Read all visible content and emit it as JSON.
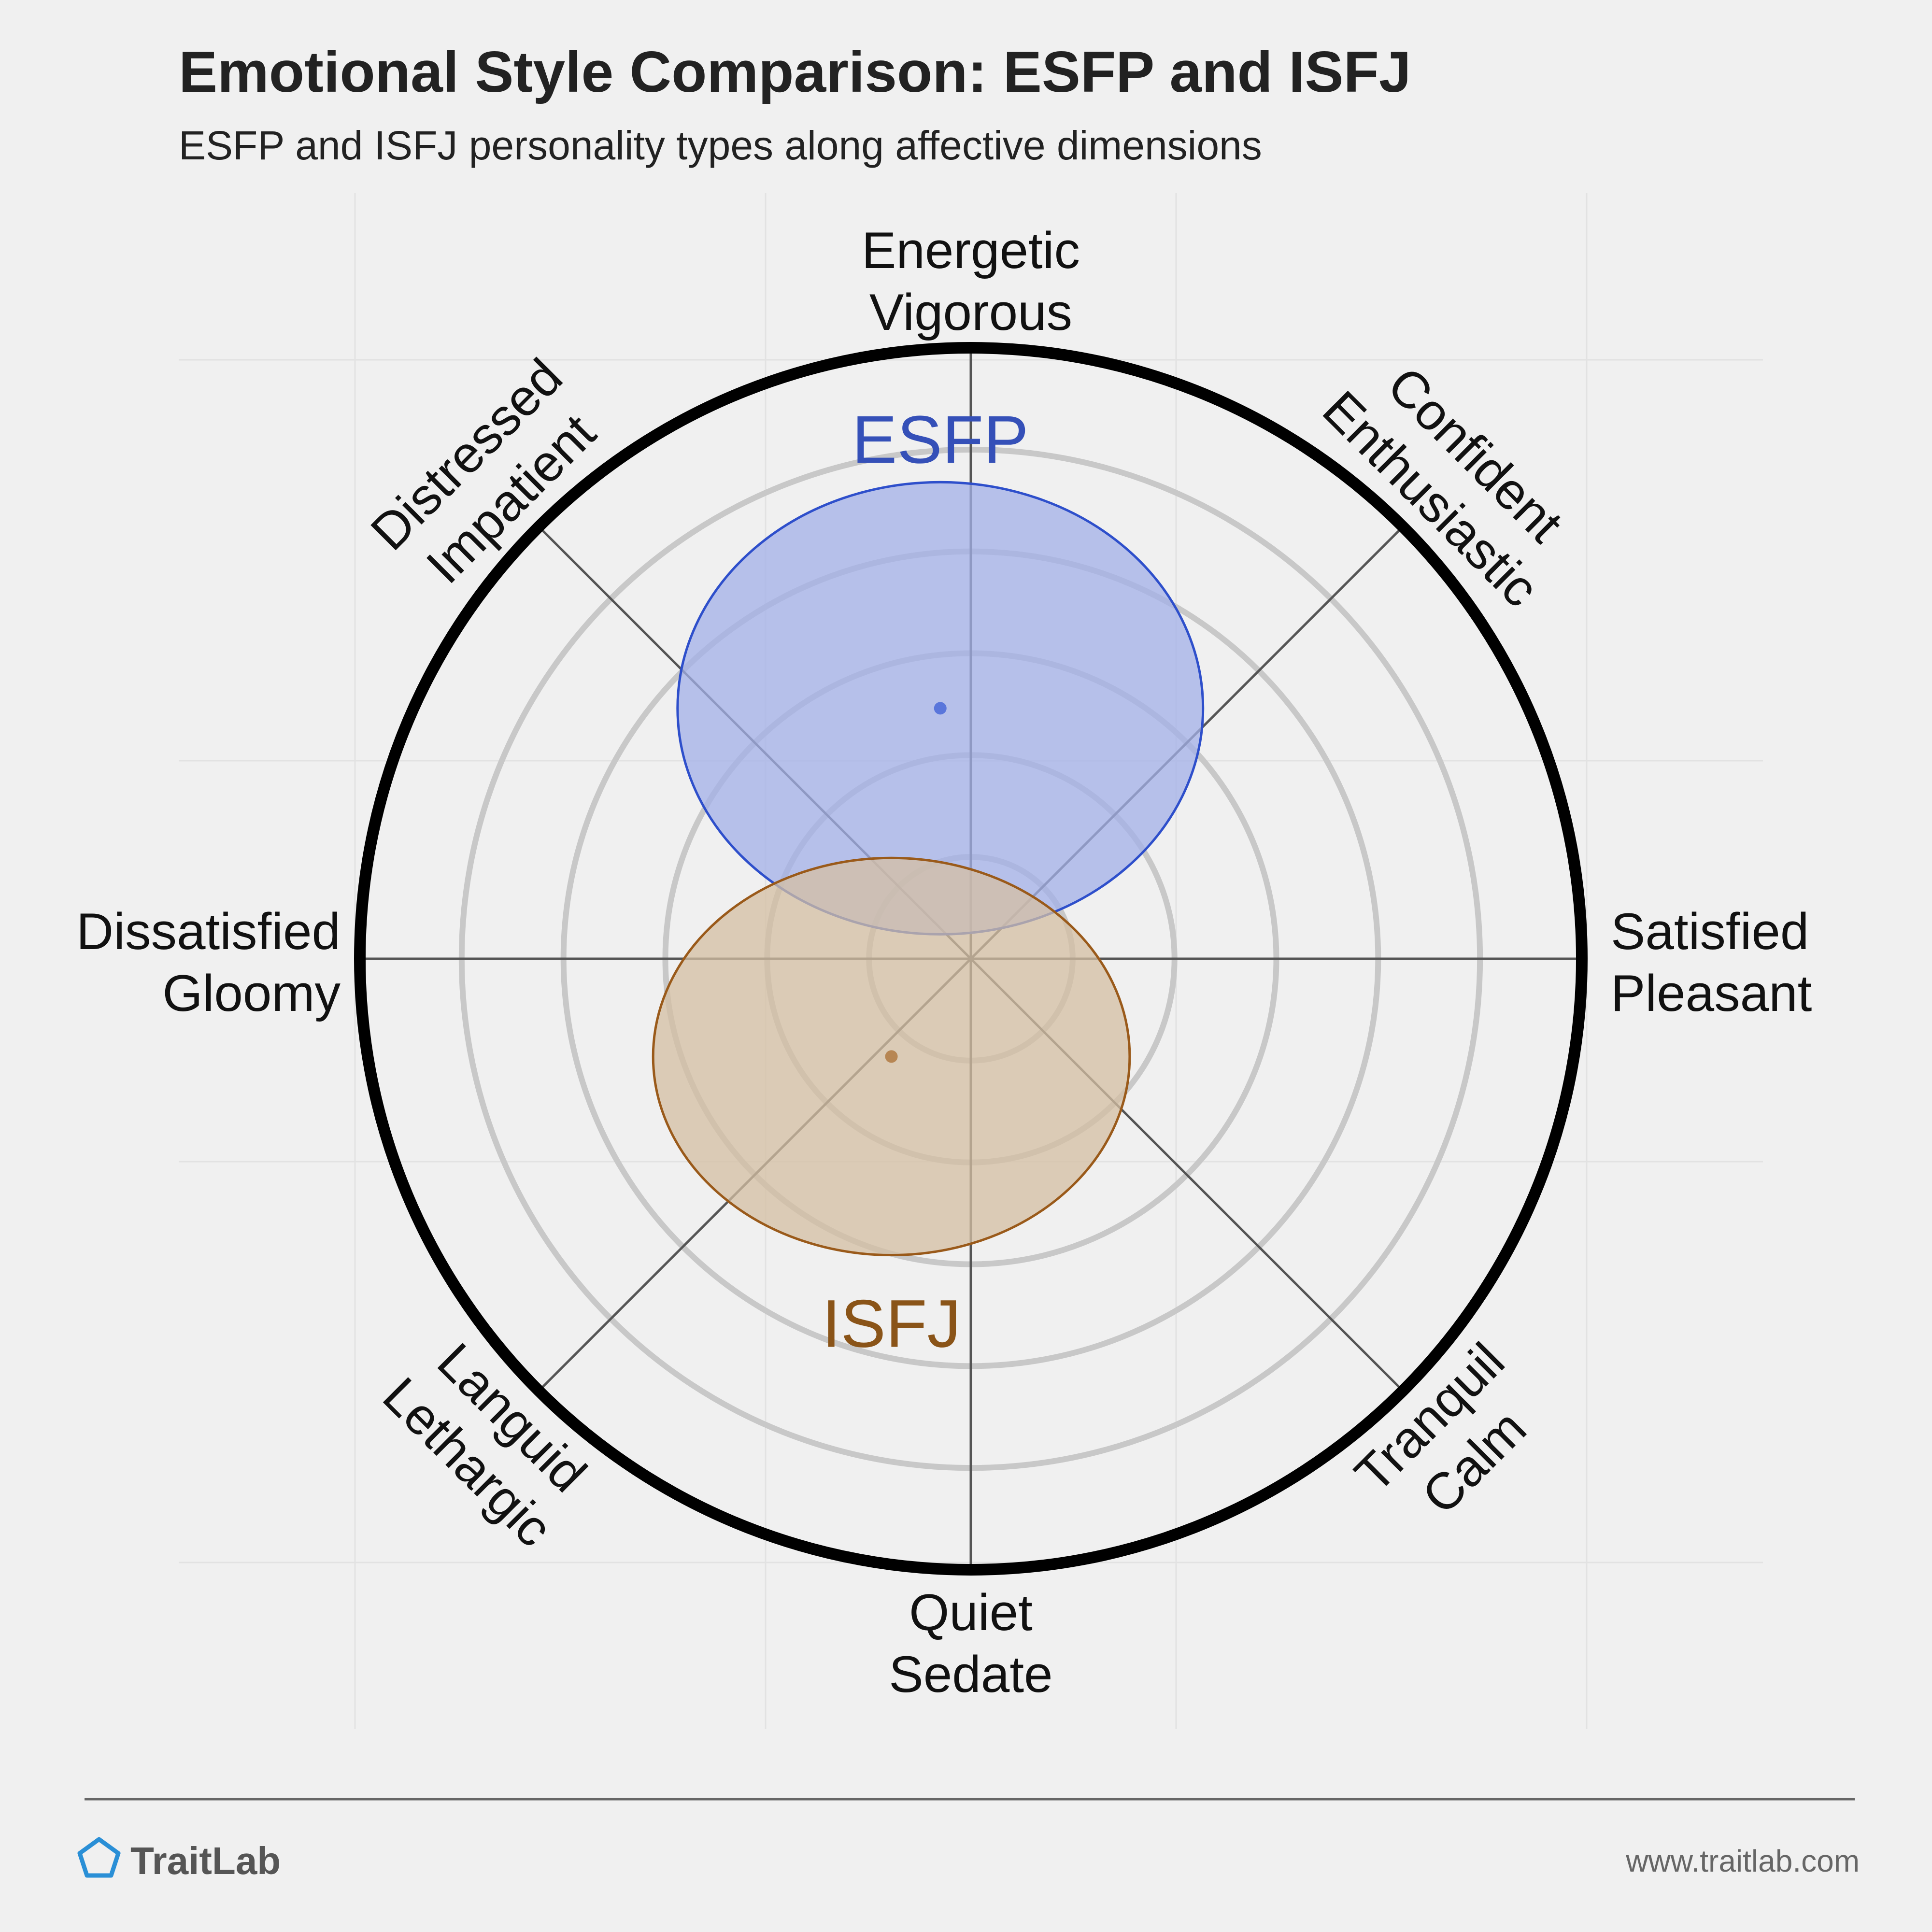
{
  "header": {
    "title": "Emotional Style Comparison: ESFP and ISFJ",
    "subtitle": "ESFP and ISFJ personality types along affective dimensions"
  },
  "footer": {
    "brand": "TraitLab",
    "url": "www.traitlab.com"
  },
  "colors": {
    "background": "#f0f0f0",
    "esfp_fill": "#a3b0e8",
    "esfp_stroke": "#2e4fcb",
    "esfp_label": "#3550b8",
    "isfj_fill": "#d4bfa3",
    "isfj_stroke": "#9a5a1a",
    "isfj_label": "#8a5418",
    "ring": "#c8c8c8",
    "outer_ring": "#000000",
    "axis_line": "#555555"
  },
  "chart_data": {
    "type": "radar-emotion-map",
    "axes": [
      {
        "angle_deg": 90,
        "lines": [
          "Energetic",
          "Vigorous"
        ]
      },
      {
        "angle_deg": 45,
        "lines": [
          "Confident",
          "Enthusiastic"
        ]
      },
      {
        "angle_deg": 0,
        "lines": [
          "Satisfied",
          "Pleasant"
        ]
      },
      {
        "angle_deg": -45,
        "lines": [
          "Tranquil",
          "Calm"
        ]
      },
      {
        "angle_deg": -90,
        "lines": [
          "Quiet",
          "Sedate"
        ]
      },
      {
        "angle_deg": -135,
        "lines": [
          "Languid",
          "Lethargic"
        ]
      },
      {
        "angle_deg": 180,
        "lines": [
          "Dissatisfied",
          "Gloomy"
        ]
      },
      {
        "angle_deg": 135,
        "lines": [
          "Distressed",
          "Impatient"
        ]
      }
    ],
    "rings": 6,
    "series": [
      {
        "name": "ESFP",
        "x": -0.05,
        "y": 0.41,
        "rx": 0.43,
        "ry": 0.37
      },
      {
        "name": "ISFJ",
        "x": -0.13,
        "y": -0.16,
        "rx": 0.39,
        "ry": 0.325
      }
    ]
  }
}
